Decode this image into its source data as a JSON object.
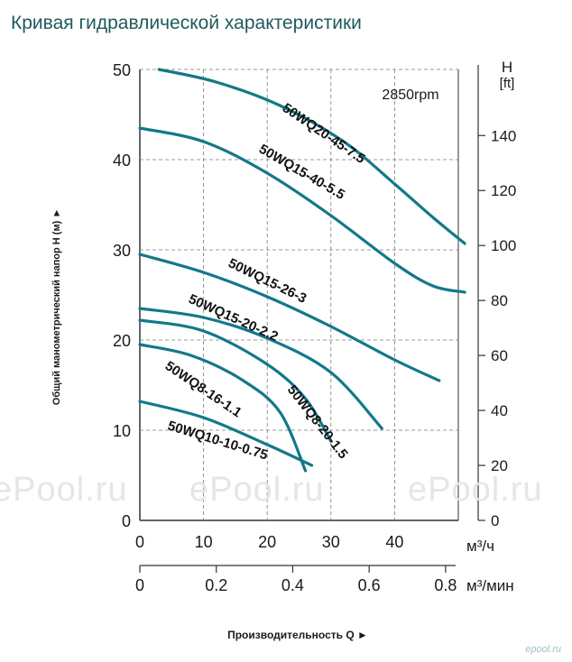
{
  "page": {
    "title": "Кривая гидравлической характеристики"
  },
  "watermarks": [
    "ePool.ru",
    "ePool.ru",
    "ePool.ru"
  ],
  "corner_logo": "epool.ru",
  "colors": {
    "curve": "#13788a",
    "grid": "#7a7a7a",
    "text": "#1a1a1a",
    "title": "#1f5a5c"
  },
  "chart_data": {
    "type": "line",
    "title": "",
    "annotation": "2850rpm",
    "ylabel": "Общий манометрический напор H (м)",
    "xlabel": "Производительность Q",
    "ylim": [
      0,
      50
    ],
    "xlim": [
      0,
      50
    ],
    "grid": true,
    "y_ticks": [
      "0",
      "10",
      "20",
      "30",
      "40",
      "50"
    ],
    "x_ticks": [
      "0",
      "10",
      "20",
      "30",
      "40"
    ],
    "x_unit": "м³/ч",
    "x2_ticks": [
      "0",
      "0.2",
      "0.4",
      "0.6",
      "0.8"
    ],
    "x2_unit": "м³/мин",
    "y2_label_top": "H",
    "y2_label_unit": "[ft]",
    "y2_ticks": [
      "0",
      "20",
      "40",
      "60",
      "80",
      "100",
      "120",
      "140"
    ],
    "series": [
      {
        "name": "50WQ20-45-7.5",
        "x": [
          3,
          12,
          22,
          32,
          40,
          46,
          51
        ],
        "y": [
          50,
          48.6,
          46,
          42,
          37.3,
          33.6,
          30.7
        ]
      },
      {
        "name": "50WQ15-40-5.5",
        "x": [
          0,
          10,
          20,
          30,
          40,
          46,
          51
        ],
        "y": [
          43.5,
          42,
          38.5,
          33.8,
          28.5,
          26,
          25.3
        ]
      },
      {
        "name": "50WQ15-26-3",
        "x": [
          0,
          10,
          20,
          30,
          40,
          47
        ],
        "y": [
          29.5,
          27.5,
          24.8,
          21.5,
          17.8,
          15.5
        ]
      },
      {
        "name": "50WQ15-20-2.2",
        "x": [
          0,
          10,
          20,
          30,
          38
        ],
        "y": [
          23.5,
          22.5,
          20.2,
          16.4,
          10.2
        ]
      },
      {
        "name": "50WQ8-20-1.5",
        "x": [
          0,
          10,
          20,
          26,
          30
        ],
        "y": [
          22.2,
          21,
          17.3,
          13.5,
          8.8
        ]
      },
      {
        "name": "50WQ8-16-1.1",
        "x": [
          0,
          8,
          16,
          22,
          26
        ],
        "y": [
          19.5,
          18.3,
          15.6,
          12,
          5.5
        ]
      },
      {
        "name": "50WQ10-10-0.75",
        "x": [
          0,
          10,
          20,
          27
        ],
        "y": [
          13.2,
          11.4,
          8.4,
          6.1
        ]
      }
    ],
    "curve_labels": [
      "50WQ20-45-7.5",
      "50WQ15-40-5.5",
      "50WQ15-26-3",
      "50WQ15-20-2.2",
      "50WQ8-20-1.5",
      "50WQ8-16-1.1",
      "50WQ10-10-0.75"
    ]
  }
}
